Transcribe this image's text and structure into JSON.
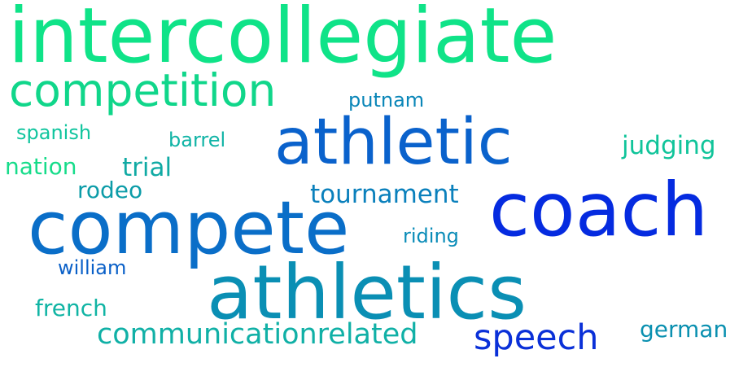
{
  "words": [
    {
      "text": "intercollegiate",
      "color": "#0fe388"
    },
    {
      "text": "competition",
      "color": "#10d68a"
    },
    {
      "text": "athletic",
      "color": "#0a62cc"
    },
    {
      "text": "coach",
      "color": "#052be0"
    },
    {
      "text": "compete",
      "color": "#0a6ec8"
    },
    {
      "text": "athletics",
      "color": "#0a8fb4"
    },
    {
      "text": "putnam",
      "color": "#0a86b8"
    },
    {
      "text": "spanish",
      "color": "#10c59e"
    },
    {
      "text": "barrel",
      "color": "#10b4a6"
    },
    {
      "text": "judging",
      "color": "#10c49a"
    },
    {
      "text": "nation",
      "color": "#16dc8a"
    },
    {
      "text": "trial",
      "color": "#10aaa4"
    },
    {
      "text": "rodeo",
      "color": "#0c9ca8"
    },
    {
      "text": "tournament",
      "color": "#0a80bc"
    },
    {
      "text": "riding",
      "color": "#0a8cb8"
    },
    {
      "text": "william",
      "color": "#0a60c8"
    },
    {
      "text": "french",
      "color": "#10b4a4"
    },
    {
      "text": "communicationrelated",
      "color": "#10b0a6"
    },
    {
      "text": "speech",
      "color": "#0a30d8"
    },
    {
      "text": "german",
      "color": "#0a90b0"
    }
  ]
}
